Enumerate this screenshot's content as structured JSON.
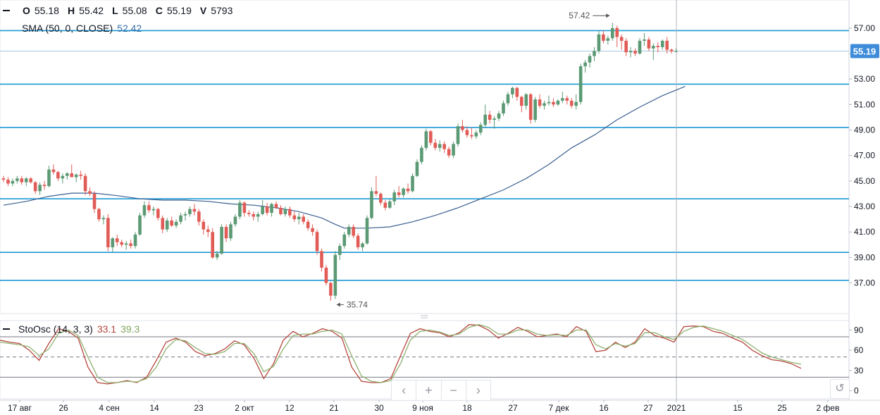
{
  "ohlc_legend": {
    "o_label": "O",
    "o_value": "55.18",
    "h_label": "H",
    "h_value": "55.42",
    "l_label": "L",
    "l_value": "55.08",
    "c_label": "C",
    "c_value": "55.19",
    "v_label": "V",
    "v_value": "5793"
  },
  "sma_legend": {
    "label": "SMA (50, 0, CLOSE)",
    "value": "52.42"
  },
  "stoch_legend": {
    "label": "StoOsc (14, 3, 3)",
    "k_value": "33.1",
    "d_value": "39.3"
  },
  "nav": {
    "left": "‹",
    "zoom_in": "+",
    "zoom_out": "−",
    "right": "›"
  },
  "reset_icon": "↺",
  "price_tag": "55.19",
  "colors": {
    "up": "#5b9a74",
    "down": "#e15c57",
    "sma": "#3a5f8f",
    "hline": "#1e9ad6",
    "k_line": "#b5463f",
    "d_line": "#8fb06e",
    "price_tag_bg": "#3d8bd9"
  },
  "chart_data": [
    {
      "type": "candlestick",
      "y_ticks": [
        "57.00",
        "55.00",
        "53.00",
        "51.00",
        "49.00",
        "47.00",
        "45.00",
        "43.00",
        "41.00",
        "39.00",
        "37.00"
      ],
      "x_ticks": [
        "17 авг",
        "26",
        "4 сен",
        "14",
        "23",
        "2 окт",
        "12",
        "21",
        "30",
        "9 ноя",
        "18",
        "27",
        "7 дек",
        "16",
        "27",
        "2021",
        "15",
        "25",
        "2 фев"
      ],
      "ylim": [
        34.6,
        59.2
      ],
      "horizontal_levels": [
        56.8,
        52.6,
        49.2,
        43.6,
        39.4,
        37.2
      ],
      "high_marker": {
        "label": "57.42",
        "value": 57.42
      },
      "low_marker": {
        "label": "35.74",
        "value": 35.74
      },
      "last_price": 55.19,
      "ohlc": [
        [
          45.2,
          45.4,
          44.9,
          45.1
        ],
        [
          45.1,
          45.3,
          44.6,
          44.8
        ],
        [
          44.8,
          45.2,
          44.6,
          45.0
        ],
        [
          45.0,
          45.4,
          44.8,
          45.2
        ],
        [
          45.2,
          45.4,
          44.7,
          44.9
        ],
        [
          44.9,
          45.3,
          44.6,
          45.2
        ],
        [
          45.2,
          45.3,
          44.8,
          44.9
        ],
        [
          44.9,
          45.0,
          44.0,
          44.2
        ],
        [
          44.2,
          44.9,
          43.9,
          44.7
        ],
        [
          44.7,
          45.0,
          44.3,
          44.6
        ],
        [
          44.6,
          46.2,
          44.5,
          45.9
        ],
        [
          45.9,
          46.3,
          45.5,
          45.7
        ],
        [
          45.7,
          45.8,
          45.0,
          45.2
        ],
        [
          45.2,
          45.6,
          44.8,
          45.4
        ],
        [
          45.4,
          45.7,
          45.1,
          45.6
        ],
        [
          45.6,
          46.3,
          45.3,
          45.3
        ],
        [
          45.3,
          45.6,
          44.9,
          45.5
        ],
        [
          45.5,
          45.8,
          45.1,
          45.4
        ],
        [
          45.4,
          45.6,
          43.9,
          44.2
        ],
        [
          44.2,
          44.5,
          43.8,
          44.0
        ],
        [
          44.0,
          44.2,
          42.5,
          42.8
        ],
        [
          42.8,
          42.9,
          41.8,
          42.0
        ],
        [
          42.0,
          42.3,
          41.6,
          42.1
        ],
        [
          42.1,
          42.4,
          39.5,
          39.8
        ],
        [
          39.8,
          40.6,
          39.4,
          40.5
        ],
        [
          40.5,
          40.8,
          39.9,
          40.2
        ],
        [
          40.2,
          40.4,
          39.8,
          40.0
        ],
        [
          40.0,
          40.3,
          39.6,
          40.1
        ],
        [
          40.1,
          40.4,
          39.7,
          39.9
        ],
        [
          39.9,
          41.0,
          39.7,
          40.8
        ],
        [
          40.8,
          42.5,
          40.7,
          42.3
        ],
        [
          42.3,
          43.4,
          42.1,
          43.1
        ],
        [
          43.1,
          43.4,
          42.5,
          42.7
        ],
        [
          42.7,
          43.0,
          42.3,
          42.8
        ],
        [
          42.8,
          42.9,
          41.9,
          42.1
        ],
        [
          42.1,
          42.3,
          40.9,
          41.2
        ],
        [
          41.2,
          42.1,
          41.0,
          41.9
        ],
        [
          41.9,
          42.2,
          41.4,
          41.5
        ],
        [
          41.5,
          42.0,
          41.3,
          41.8
        ],
        [
          41.8,
          42.5,
          41.6,
          42.3
        ],
        [
          42.3,
          42.6,
          41.9,
          42.4
        ],
        [
          42.4,
          43.0,
          42.2,
          42.8
        ],
        [
          42.8,
          43.2,
          42.3,
          42.6
        ],
        [
          42.6,
          42.8,
          41.5,
          41.8
        ],
        [
          41.8,
          42.0,
          40.8,
          41.2
        ],
        [
          41.2,
          41.5,
          40.6,
          41.0
        ],
        [
          41.0,
          41.3,
          38.9,
          39.0
        ],
        [
          39.0,
          39.5,
          38.8,
          39.3
        ],
        [
          39.3,
          41.6,
          39.2,
          41.4
        ],
        [
          41.4,
          41.6,
          40.2,
          40.5
        ],
        [
          40.5,
          41.8,
          40.3,
          41.6
        ],
        [
          41.6,
          42.4,
          41.4,
          42.2
        ],
        [
          42.2,
          43.5,
          42.0,
          43.3
        ],
        [
          43.3,
          43.4,
          42.2,
          42.5
        ],
        [
          42.5,
          42.7,
          42.2,
          42.4
        ],
        [
          42.4,
          42.6,
          41.9,
          42.2
        ],
        [
          42.2,
          42.6,
          41.8,
          42.4
        ],
        [
          42.4,
          43.5,
          42.3,
          43.0
        ],
        [
          43.0,
          43.3,
          42.3,
          42.5
        ],
        [
          42.5,
          43.3,
          42.2,
          43.2
        ],
        [
          43.2,
          43.4,
          42.8,
          42.9
        ],
        [
          42.9,
          43.1,
          42.3,
          42.4
        ],
        [
          42.4,
          43.0,
          42.2,
          42.8
        ],
        [
          42.8,
          43.0,
          42.1,
          42.3
        ],
        [
          42.3,
          42.6,
          41.8,
          42.0
        ],
        [
          42.0,
          42.5,
          41.6,
          42.2
        ],
        [
          42.2,
          42.4,
          41.6,
          41.8
        ],
        [
          41.8,
          42.0,
          41.1,
          41.3
        ],
        [
          41.3,
          41.6,
          40.7,
          41.0
        ],
        [
          41.0,
          41.2,
          39.2,
          39.5
        ],
        [
          39.5,
          39.7,
          37.9,
          38.2
        ],
        [
          38.2,
          38.4,
          36.8,
          37.0
        ],
        [
          37.0,
          37.1,
          35.6,
          36.0
        ],
        [
          36.0,
          39.5,
          35.74,
          39.2
        ],
        [
          39.2,
          40.1,
          38.8,
          39.9
        ],
        [
          39.9,
          41.0,
          39.7,
          40.8
        ],
        [
          40.8,
          41.6,
          40.6,
          41.4
        ],
        [
          41.4,
          41.6,
          40.5,
          40.7
        ],
        [
          40.7,
          40.9,
          39.6,
          39.8
        ],
        [
          39.8,
          40.2,
          39.5,
          40.1
        ],
        [
          40.1,
          42.3,
          40.0,
          42.1
        ],
        [
          42.1,
          44.5,
          42.0,
          44.2
        ],
        [
          44.2,
          45.4,
          43.8,
          44.0
        ],
        [
          44.0,
          44.1,
          43.1,
          43.3
        ],
        [
          43.3,
          43.5,
          42.7,
          42.9
        ],
        [
          42.9,
          43.6,
          42.8,
          43.4
        ],
        [
          43.4,
          44.3,
          43.1,
          44.1
        ],
        [
          44.1,
          44.6,
          43.7,
          43.9
        ],
        [
          43.9,
          44.5,
          43.7,
          44.4
        ],
        [
          44.4,
          44.8,
          44.0,
          44.2
        ],
        [
          44.2,
          45.6,
          44.1,
          45.4
        ],
        [
          45.4,
          46.7,
          45.3,
          46.5
        ],
        [
          46.5,
          47.8,
          46.3,
          47.6
        ],
        [
          47.6,
          49.1,
          47.4,
          48.9
        ],
        [
          48.9,
          49.0,
          47.8,
          48.0
        ],
        [
          48.0,
          48.3,
          47.4,
          47.6
        ],
        [
          47.6,
          48.2,
          47.3,
          47.9
        ],
        [
          47.9,
          48.1,
          47.2,
          47.5
        ],
        [
          47.5,
          47.7,
          46.8,
          47.0
        ],
        [
          47.0,
          48.1,
          46.8,
          47.9
        ],
        [
          47.9,
          49.5,
          47.7,
          49.3
        ],
        [
          49.3,
          49.8,
          48.8,
          49.0
        ],
        [
          49.0,
          49.3,
          48.4,
          48.6
        ],
        [
          48.6,
          49.2,
          48.3,
          48.5
        ],
        [
          48.5,
          49.0,
          48.3,
          48.8
        ],
        [
          48.8,
          49.6,
          48.6,
          49.4
        ],
        [
          49.4,
          51.0,
          49.2,
          50.2
        ],
        [
          50.2,
          50.5,
          49.5,
          49.8
        ],
        [
          49.8,
          50.1,
          49.1,
          49.9
        ],
        [
          49.9,
          50.5,
          49.7,
          50.3
        ],
        [
          50.3,
          51.3,
          50.1,
          51.1
        ],
        [
          51.1,
          52.0,
          50.9,
          51.8
        ],
        [
          51.8,
          52.4,
          51.5,
          52.3
        ],
        [
          52.3,
          52.4,
          51.3,
          51.6
        ],
        [
          51.6,
          51.7,
          50.4,
          50.9
        ],
        [
          50.9,
          51.9,
          50.6,
          51.8
        ],
        [
          51.8,
          51.9,
          49.5,
          49.8
        ],
        [
          49.8,
          51.6,
          49.6,
          51.4
        ],
        [
          51.4,
          51.8,
          50.7,
          50.9
        ],
        [
          50.9,
          51.3,
          50.6,
          51.1
        ],
        [
          51.1,
          51.7,
          50.9,
          51.2
        ],
        [
          51.2,
          51.5,
          50.8,
          51.0
        ],
        [
          51.0,
          51.4,
          50.9,
          51.3
        ],
        [
          51.3,
          52.0,
          51.1,
          51.5
        ],
        [
          51.5,
          51.7,
          51.0,
          51.3
        ],
        [
          51.3,
          51.5,
          50.7,
          50.9
        ],
        [
          50.9,
          51.8,
          50.6,
          51.2
        ],
        [
          51.2,
          54.2,
          51.0,
          54.0
        ],
        [
          54.0,
          54.5,
          53.5,
          54.3
        ],
        [
          54.3,
          55.0,
          53.9,
          54.8
        ],
        [
          54.8,
          55.5,
          54.4,
          55.2
        ],
        [
          55.2,
          56.8,
          55.0,
          56.5
        ],
        [
          56.5,
          56.8,
          55.8,
          56.0
        ],
        [
          56.0,
          56.4,
          55.7,
          56.2
        ],
        [
          56.2,
          57.42,
          56.0,
          57.0
        ],
        [
          57.0,
          57.2,
          55.5,
          56.3
        ],
        [
          56.3,
          56.5,
          55.3,
          56.0
        ],
        [
          56.0,
          56.2,
          54.8,
          55.1
        ],
        [
          55.1,
          55.5,
          54.7,
          55.2
        ],
        [
          55.2,
          55.4,
          54.8,
          55.0
        ],
        [
          55.0,
          56.2,
          54.9,
          56.0
        ],
        [
          56.0,
          56.6,
          55.6,
          56.1
        ],
        [
          56.1,
          56.3,
          55.2,
          55.4
        ],
        [
          55.4,
          55.8,
          54.5,
          55.6
        ],
        [
          55.6,
          55.9,
          55.1,
          55.5
        ],
        [
          55.5,
          56.1,
          55.3,
          56.0
        ],
        [
          56.0,
          56.3,
          55.0,
          55.3
        ],
        [
          55.3,
          55.4,
          55.0,
          55.18
        ],
        [
          55.18,
          55.42,
          55.08,
          55.19
        ]
      ],
      "sma": [
        [
          0,
          43.1
        ],
        [
          5,
          43.4
        ],
        [
          10,
          43.8
        ],
        [
          15,
          44.05
        ],
        [
          20,
          44.05
        ],
        [
          25,
          43.85
        ],
        [
          30,
          43.6
        ],
        [
          35,
          43.5
        ],
        [
          40,
          43.5
        ],
        [
          45,
          43.4
        ],
        [
          50,
          43.2
        ],
        [
          55,
          43.1
        ],
        [
          60,
          42.9
        ],
        [
          65,
          42.6
        ],
        [
          70,
          42.1
        ],
        [
          73,
          41.6
        ],
        [
          75,
          41.3
        ],
        [
          80,
          41.3
        ],
        [
          85,
          41.4
        ],
        [
          90,
          41.8
        ],
        [
          95,
          42.3
        ],
        [
          100,
          42.9
        ],
        [
          105,
          43.6
        ],
        [
          110,
          44.3
        ],
        [
          115,
          45.2
        ],
        [
          120,
          46.3
        ],
        [
          125,
          47.6
        ],
        [
          130,
          48.6
        ],
        [
          135,
          49.8
        ],
        [
          140,
          50.8
        ],
        [
          145,
          51.7
        ],
        [
          150,
          52.42
        ]
      ]
    },
    {
      "type": "line",
      "series": [
        {
          "color": "k_line",
          "values": [
            75,
            72,
            70,
            60,
            45,
            70,
            92,
            88,
            78,
            35,
            12,
            10,
            12,
            15,
            12,
            20,
            45,
            72,
            78,
            72,
            58,
            52,
            55,
            62,
            74,
            68,
            48,
            18,
            40,
            75,
            88,
            80,
            85,
            92,
            88,
            78,
            35,
            14,
            12,
            12,
            18,
            52,
            85,
            92,
            88,
            86,
            80,
            86,
            98,
            97,
            90,
            78,
            85,
            94,
            88,
            80,
            82,
            84,
            80,
            95,
            88,
            58,
            60,
            72,
            64,
            72,
            92,
            82,
            78,
            72,
            95,
            96,
            95,
            88,
            85,
            78,
            72,
            60,
            52,
            46,
            44,
            40,
            33.1
          ]
        },
        {
          "color": "d_line",
          "values": [
            72,
            70,
            68,
            65,
            52,
            62,
            85,
            90,
            82,
            50,
            20,
            12,
            12,
            14,
            13,
            18,
            35,
            62,
            76,
            74,
            64,
            55,
            54,
            58,
            70,
            70,
            55,
            28,
            36,
            62,
            82,
            84,
            84,
            88,
            90,
            84,
            52,
            22,
            14,
            12,
            15,
            40,
            75,
            88,
            90,
            87,
            82,
            84,
            94,
            98,
            94,
            84,
            84,
            90,
            90,
            84,
            82,
            83,
            82,
            90,
            90,
            68,
            62,
            70,
            66,
            70,
            86,
            86,
            80,
            76,
            88,
            94,
            96,
            92,
            88,
            82,
            76,
            66,
            56,
            50,
            46,
            42,
            39.3
          ]
        }
      ],
      "y_ticks": [
        "90",
        "60",
        "30",
        "0"
      ],
      "ylim": [
        -12,
        104
      ],
      "levels": [
        80,
        50,
        20
      ]
    }
  ]
}
